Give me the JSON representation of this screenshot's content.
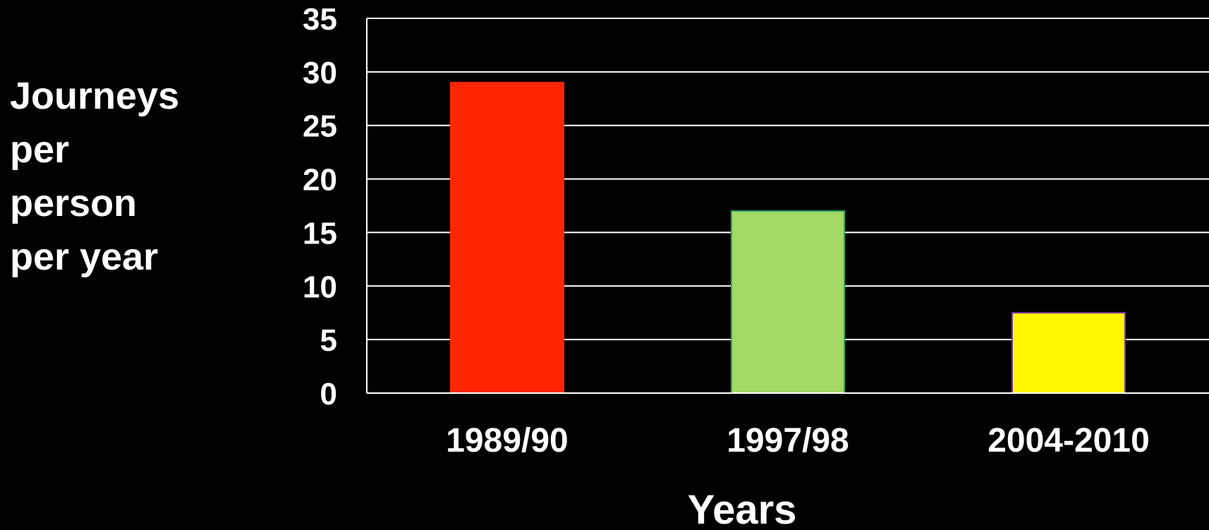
{
  "chart_data": {
    "type": "bar",
    "categories": [
      "1989/90",
      "1997/98",
      "2004-2010"
    ],
    "values": [
      29,
      17,
      7.5
    ],
    "bar_colors": [
      "#ff2600",
      "#a3d964",
      "#fff700"
    ],
    "bar_edge_colors": [
      "#ff2600",
      "#2fa86a",
      "#7a3aa0"
    ],
    "xlabel": "Years",
    "ylabel_lines": [
      "Journeys",
      "per",
      "person",
      "per year"
    ],
    "ylim": [
      0,
      35
    ],
    "yticks": [
      0,
      5,
      10,
      15,
      20,
      25,
      30,
      35
    ],
    "grid": true,
    "background": "#000000",
    "text_color": "#ffffff"
  }
}
